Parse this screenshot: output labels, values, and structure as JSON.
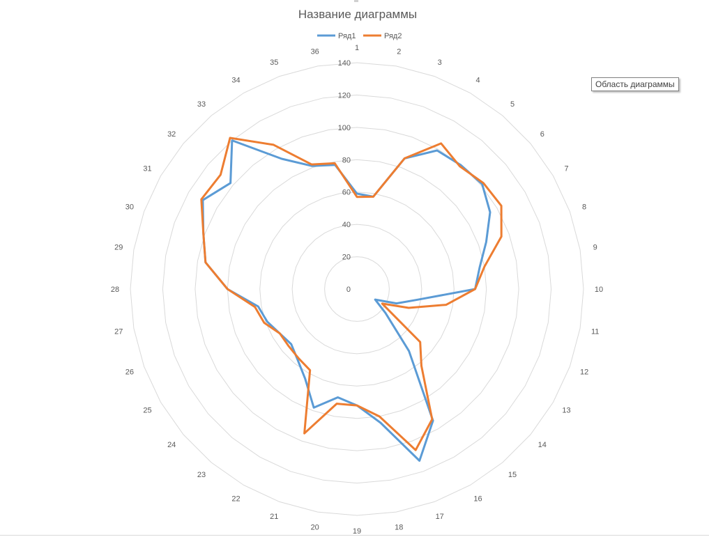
{
  "chart_data": {
    "type": "radar",
    "title": "Название диаграммы",
    "categories": [
      "1",
      "2",
      "3",
      "4",
      "5",
      "6",
      "7",
      "8",
      "9",
      "10",
      "11",
      "12",
      "13",
      "14",
      "15",
      "16",
      "17",
      "18",
      "19",
      "20",
      "21",
      "22",
      "23",
      "24",
      "25",
      "26",
      "27",
      "28",
      "29",
      "30",
      "31",
      "32",
      "33",
      "34",
      "35",
      "36"
    ],
    "rticks": [
      "0",
      "20",
      "40",
      "60",
      "80",
      "100",
      "120",
      "140"
    ],
    "rlim": [
      0,
      140
    ],
    "grid": true,
    "legend_position": "top",
    "series": [
      {
        "name": "Ряд1",
        "color": "#5B9BD5",
        "values": [
          59,
          58,
          86,
          99,
          100,
          101,
          95,
          85,
          77,
          73,
          38,
          26,
          13,
          23,
          50,
          94,
          113,
          84,
          72,
          68,
          78,
          64,
          57,
          53,
          55,
          59,
          62,
          80,
          95,
          101,
          110,
          102,
          120,
          93,
          81,
          78
        ]
      },
      {
        "name": "Ряд2",
        "color": "#ED7D31",
        "values": [
          57,
          58,
          86,
          104,
          99,
          102,
          103,
          95,
          80,
          73,
          56,
          34,
          18,
          51,
          62,
          93,
          106,
          80,
          72,
          72,
          95,
          58,
          56,
          55,
          55,
          61,
          64,
          80,
          95,
          101,
          111,
          110,
          122,
          103,
          82,
          79
        ]
      }
    ]
  },
  "tooltip": "Область диаграммы"
}
